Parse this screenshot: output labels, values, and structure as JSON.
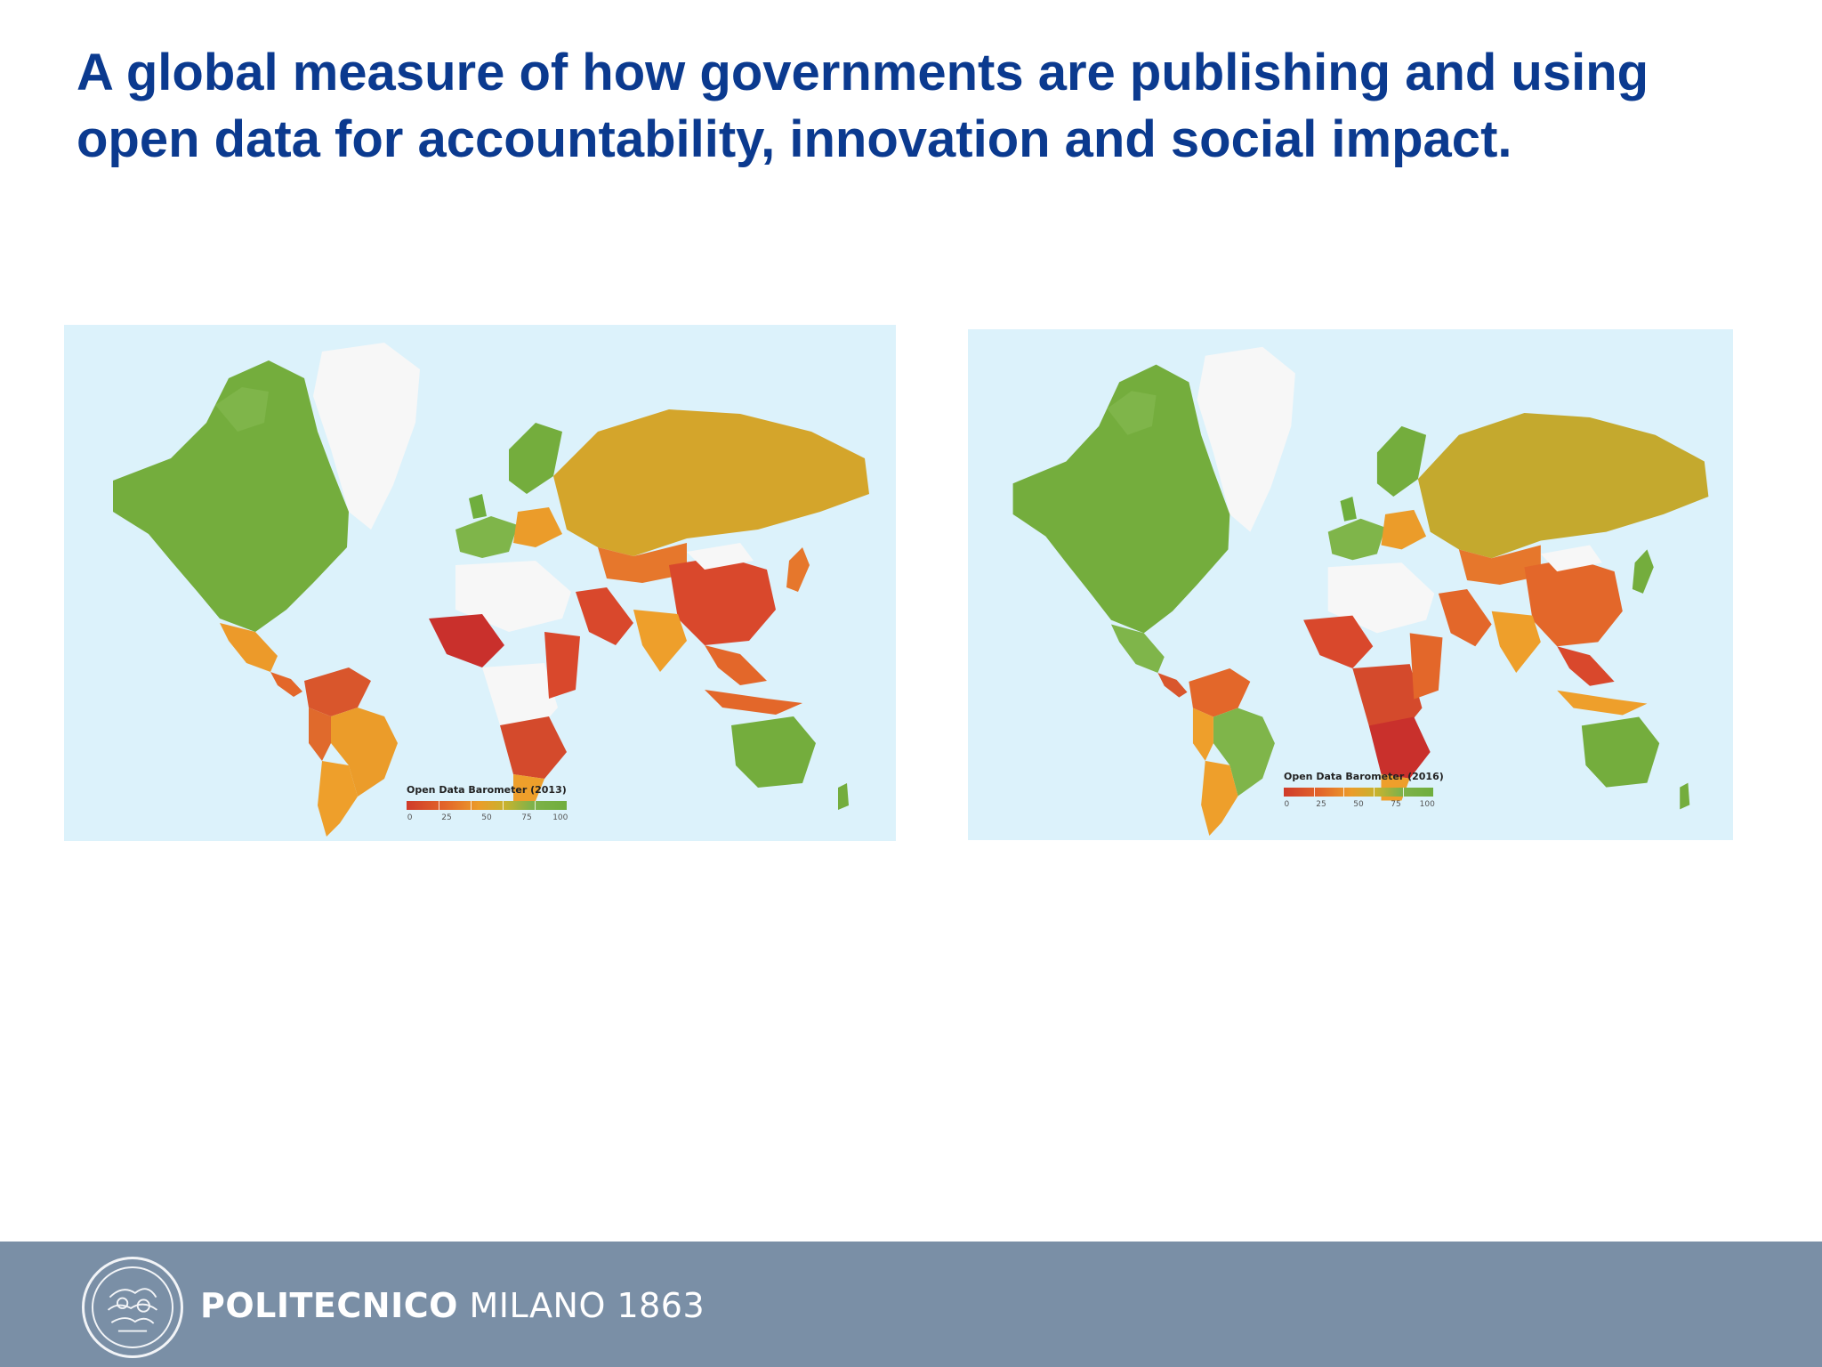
{
  "slide": {
    "title": "A global measure of how governments are publishing and using open data for accountability, innovation and social impact."
  },
  "maps": [
    {
      "legend_title": "Open Data Barometer (2013)",
      "scale_ticks": [
        "0",
        "25",
        "50",
        "75",
        "100"
      ]
    },
    {
      "legend_title": "Open Data Barometer (2016)",
      "scale_ticks": [
        "0",
        "25",
        "50",
        "75",
        "100"
      ]
    }
  ],
  "footer": {
    "institution_bold": "POLITECNICO",
    "institution_rest": "MILANO 1863",
    "logo_icon": "university-seal-icon"
  },
  "colors": {
    "title": "#0b3a8f",
    "ocean": "#dcf2fb",
    "footer": "#7a8fa6",
    "score_low": "#cf3b2a",
    "score_mid": "#eb9c2a",
    "score_high": "#6fae3d"
  }
}
